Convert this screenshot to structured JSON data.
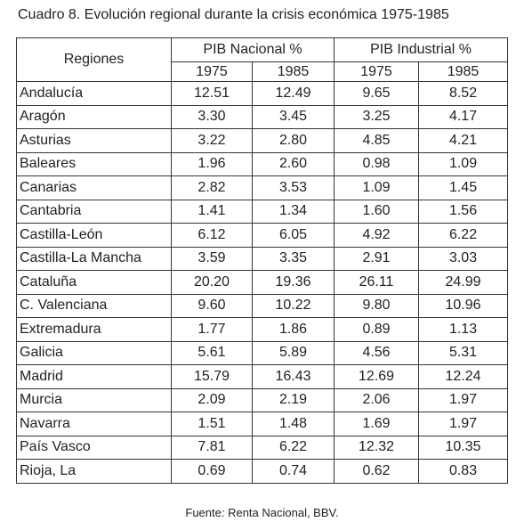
{
  "title": "Cuadro 8. Evolución regional durante la crisis económica 1975-1985",
  "table": {
    "header": {
      "regions": "Regiones",
      "groups": [
        "PIB Nacional %",
        "PIB Industrial %"
      ],
      "years": [
        "1975",
        "1985",
        "1975",
        "1985"
      ]
    },
    "rows": [
      [
        "Andalucía",
        "12.51",
        "12.49",
        "9.65",
        "8.52"
      ],
      [
        "Aragón",
        "3.30",
        "3.45",
        "3.25",
        "4.17"
      ],
      [
        "Asturias",
        "3.22",
        "2.80",
        "4.85",
        "4.21"
      ],
      [
        "Baleares",
        "1.96",
        "2.60",
        "0.98",
        "1.09"
      ],
      [
        "Canarias",
        "2.82",
        "3.53",
        "1.09",
        "1.45"
      ],
      [
        "Cantabria",
        "1.41",
        "1.34",
        "1.60",
        "1.56"
      ],
      [
        "Castilla-León",
        "6.12",
        "6.05",
        "4.92",
        "6.22"
      ],
      [
        "Castilla-La Mancha",
        "3.59",
        "3.35",
        "2.91",
        "3.03"
      ],
      [
        "Cataluña",
        "20.20",
        "19.36",
        "26.11",
        "24.99"
      ],
      [
        "C. Valenciana",
        "9.60",
        "10.22",
        "9.80",
        "10.96"
      ],
      [
        "Extremadura",
        "1.77",
        "1.86",
        "0.89",
        "1.13"
      ],
      [
        "Galicia",
        "5.61",
        "5.89",
        "4.56",
        "5.31"
      ],
      [
        "Madrid",
        "15.79",
        "16.43",
        "12.69",
        "12.24"
      ],
      [
        "Murcia",
        "2.09",
        "2.19",
        "2.06",
        "1.97"
      ],
      [
        "Navarra",
        "1.51",
        "1.48",
        "1.69",
        "1.97"
      ],
      [
        "País Vasco",
        "7.81",
        "6.22",
        "12.32",
        "10.35"
      ],
      [
        "Rioja, La",
        "0.69",
        "0.74",
        "0.62",
        "0.83"
      ]
    ]
  },
  "source": "Fuente: Renta Nacional, BBV."
}
